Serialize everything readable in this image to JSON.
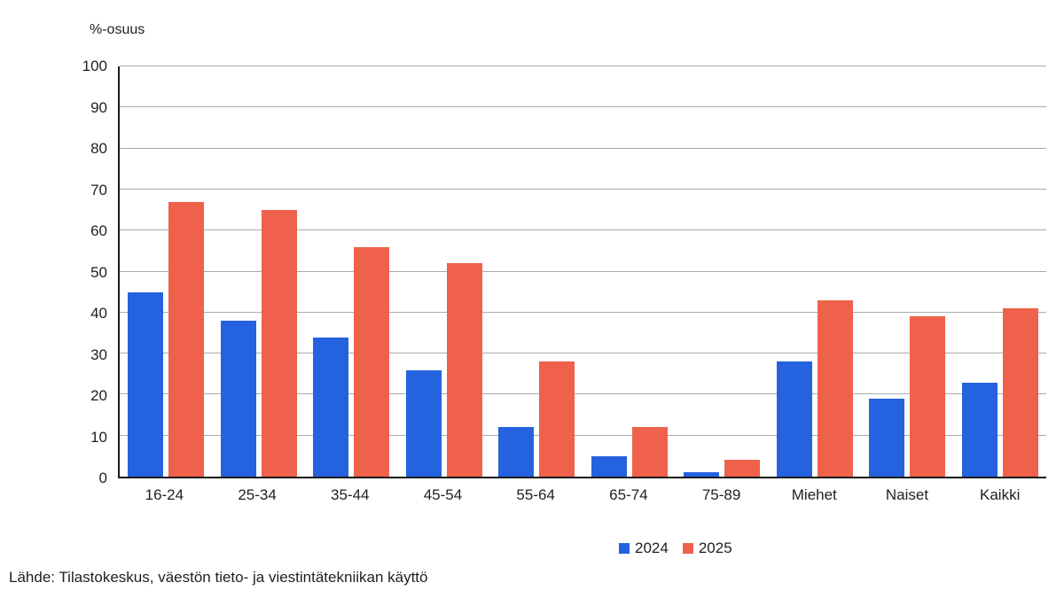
{
  "chart_data": {
    "type": "bar",
    "title": "",
    "ylabel": "%-osuus",
    "xlabel": "",
    "categories": [
      "16-24",
      "25-34",
      "35-44",
      "45-54",
      "55-64",
      "65-74",
      "75-89",
      "Miehet",
      "Naiset",
      "Kaikki"
    ],
    "series": [
      {
        "name": "2024",
        "color": "#2562e0",
        "values": [
          45,
          38,
          34,
          26,
          12,
          5,
          1,
          28,
          19,
          23
        ]
      },
      {
        "name": "2025",
        "color": "#ef614b",
        "values": [
          67,
          65,
          56,
          52,
          28,
          12,
          4,
          43,
          39,
          41
        ]
      }
    ],
    "ylim": [
      0,
      100
    ],
    "ytick_step": 10,
    "grid": true,
    "legend_position": "bottom-center"
  },
  "source_note": "Lähde: Tilastokeskus, väestön tieto- ja viestintätekniikan käyttö"
}
